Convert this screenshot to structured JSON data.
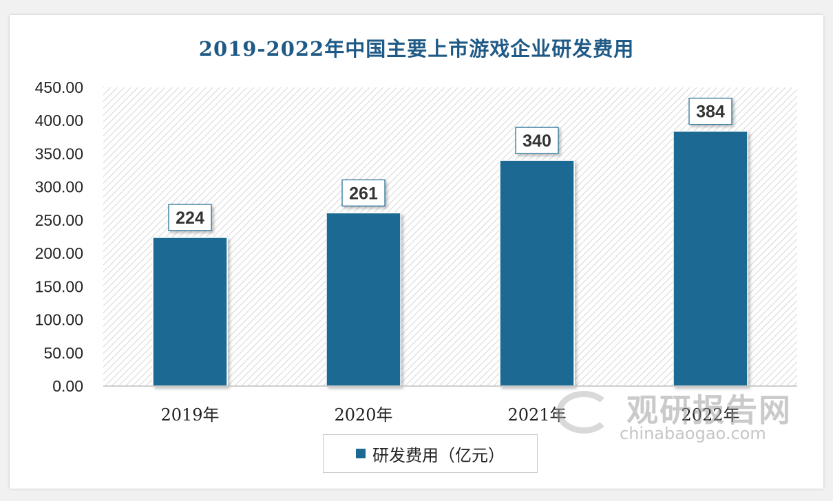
{
  "chart_data": {
    "type": "bar",
    "title": "2019-2022年中国主要上市游戏企业研发费用",
    "categories": [
      "2019年",
      "2020年",
      "2021年",
      "2022年"
    ],
    "series": [
      {
        "name": "研发费用（亿元）",
        "values": [
          224,
          261,
          340,
          384
        ]
      }
    ],
    "value_labels": [
      "224",
      "261",
      "340",
      "384"
    ],
    "ylim": [
      0,
      450
    ],
    "yticks": [
      "0.00",
      "50.00",
      "100.00",
      "150.00",
      "200.00",
      "250.00",
      "300.00",
      "350.00",
      "400.00",
      "450.00"
    ],
    "ytick_values": [
      0,
      50,
      100,
      150,
      200,
      250,
      300,
      350,
      400,
      450
    ],
    "xlabel": "",
    "ylabel": "",
    "grid": false,
    "legend": "bottom",
    "colors": {
      "bar": "#1c6a93",
      "title": "#1f5a86"
    }
  },
  "watermark": {
    "cn": "观研报告网",
    "en": "chinabaogao.com"
  }
}
